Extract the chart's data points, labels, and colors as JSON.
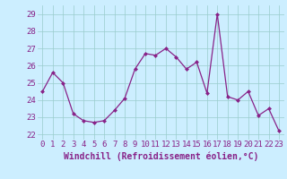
{
  "x": [
    0,
    1,
    2,
    3,
    4,
    5,
    6,
    7,
    8,
    9,
    10,
    11,
    12,
    13,
    14,
    15,
    16,
    17,
    18,
    19,
    20,
    21,
    22,
    23
  ],
  "y": [
    24.5,
    25.6,
    25.0,
    23.2,
    22.8,
    22.7,
    22.8,
    23.4,
    24.1,
    25.8,
    26.7,
    26.6,
    27.0,
    26.5,
    25.8,
    26.2,
    24.4,
    29.0,
    24.2,
    24.0,
    24.5,
    23.1,
    23.5,
    22.2
  ],
  "line_color": "#882288",
  "marker": "D",
  "marker_size": 2.5,
  "bg_color": "#cceeff",
  "grid_color": "#99cccc",
  "xlabel": "Windchill (Refroidissement éolien,°C)",
  "xlabel_color": "#882288",
  "xlabel_fontsize": 7,
  "ylabel_ticks": [
    22,
    23,
    24,
    25,
    26,
    27,
    28,
    29
  ],
  "xlim": [
    -0.5,
    23.5
  ],
  "ylim": [
    21.7,
    29.5
  ],
  "tick_fontsize": 6.5,
  "tick_color": "#882288"
}
